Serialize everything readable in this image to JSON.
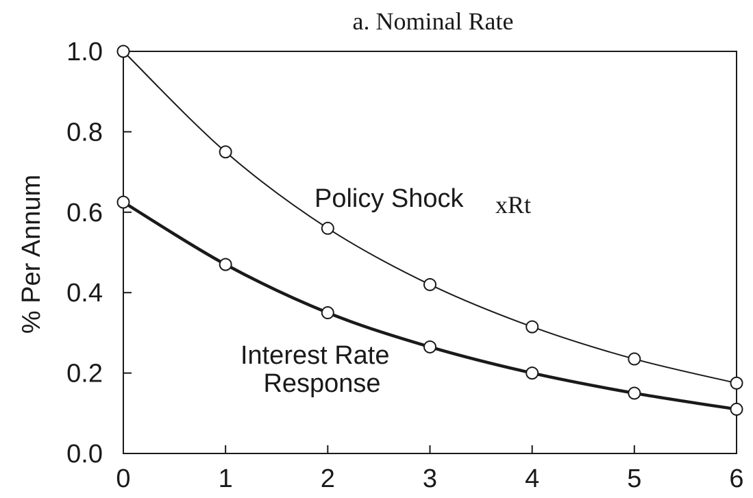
{
  "chart_data": {
    "type": "line",
    "title": "a.  Nominal Rate",
    "xlabel": "",
    "ylabel": "% Per Annum",
    "xlim": [
      0,
      6
    ],
    "ylim": [
      0,
      1.0
    ],
    "x_ticks": [
      "0",
      "1",
      "2",
      "3",
      "4",
      "5",
      "6"
    ],
    "y_ticks": [
      "0.0",
      "0.2",
      "0.4",
      "0.6",
      "0.8",
      "1.0"
    ],
    "grid": false,
    "legend": "none",
    "x": [
      0,
      1,
      2,
      3,
      4,
      5,
      6
    ],
    "series": [
      {
        "values": [
          1.0,
          0.75,
          0.56,
          0.42,
          0.315,
          0.235,
          0.175
        ],
        "color": "#1a1a1a",
        "weight": "thin"
      },
      {
        "values": [
          0.625,
          0.47,
          0.35,
          0.265,
          0.2,
          0.15,
          0.11
        ],
        "color": "#1a1a1a",
        "weight": "thick"
      }
    ],
    "annotations": [
      {
        "text": "Policy Shock",
        "suffix_text": "xRt",
        "series_index": 0
      },
      {
        "lines": [
          "Interest Rate",
          "Response"
        ],
        "series_index": 1
      }
    ]
  }
}
